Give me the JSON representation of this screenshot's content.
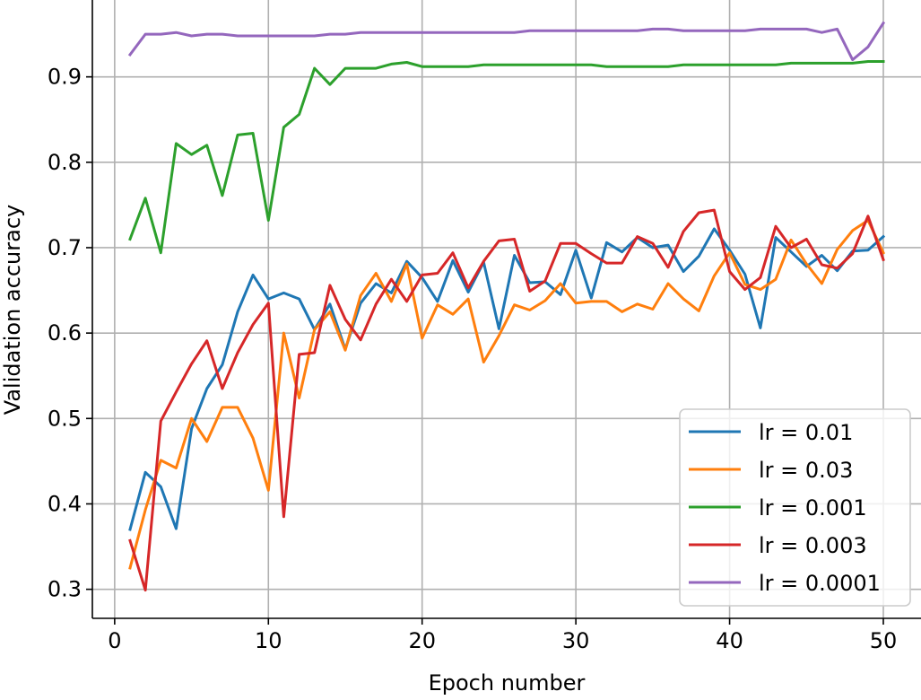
{
  "chart_data": {
    "type": "line",
    "title": "",
    "xlabel": "Epoch number",
    "ylabel": "Validation accuracy",
    "xlim": [
      -1.45,
      52.45
    ],
    "ylim": [
      0.266,
      0.99
    ],
    "xticks": [
      0,
      10,
      20,
      30,
      40,
      50
    ],
    "yticks": [
      0.3,
      0.4,
      0.5,
      0.6,
      0.7,
      0.8,
      0.9
    ],
    "ytick_labels": [
      "0.3",
      "0.4",
      "0.5",
      "0.6",
      "0.7",
      "0.8",
      "0.9"
    ],
    "grid": true,
    "legend_position": "lower right",
    "x": [
      1,
      2,
      3,
      4,
      5,
      6,
      7,
      8,
      9,
      10,
      11,
      12,
      13,
      14,
      15,
      16,
      17,
      18,
      19,
      20,
      21,
      22,
      23,
      24,
      25,
      26,
      27,
      28,
      29,
      30,
      31,
      32,
      33,
      34,
      35,
      36,
      37,
      38,
      39,
      40,
      41,
      42,
      43,
      44,
      45,
      46,
      47,
      48,
      49,
      50
    ],
    "series": [
      {
        "name": "lr = 0.01",
        "color": "#1f77b4",
        "values": [
          0.37,
          0.437,
          0.42,
          0.371,
          0.488,
          0.535,
          0.563,
          0.625,
          0.668,
          0.64,
          0.647,
          0.64,
          0.604,
          0.634,
          0.581,
          0.635,
          0.658,
          0.647,
          0.684,
          0.665,
          0.637,
          0.685,
          0.648,
          0.683,
          0.605,
          0.691,
          0.659,
          0.66,
          0.645,
          0.697,
          0.641,
          0.706,
          0.695,
          0.712,
          0.7,
          0.703,
          0.672,
          0.69,
          0.722,
          0.697,
          0.669,
          0.606,
          0.712,
          0.695,
          0.678,
          0.691,
          0.673,
          0.696,
          0.697,
          0.713
        ]
      },
      {
        "name": "lr = 0.03",
        "color": "#ff7f0e",
        "values": [
          0.325,
          0.393,
          0.451,
          0.442,
          0.5,
          0.473,
          0.513,
          0.513,
          0.477,
          0.416,
          0.6,
          0.524,
          0.604,
          0.625,
          0.58,
          0.644,
          0.67,
          0.637,
          0.681,
          0.594,
          0.633,
          0.622,
          0.64,
          0.566,
          0.597,
          0.633,
          0.627,
          0.638,
          0.658,
          0.635,
          0.637,
          0.637,
          0.625,
          0.634,
          0.628,
          0.658,
          0.64,
          0.626,
          0.667,
          0.694,
          0.657,
          0.651,
          0.663,
          0.709,
          0.681,
          0.658,
          0.698,
          0.72,
          0.732,
          0.694
        ]
      },
      {
        "name": "lr = 0.001",
        "color": "#2ca02c",
        "values": [
          0.71,
          0.758,
          0.694,
          0.822,
          0.809,
          0.82,
          0.761,
          0.832,
          0.834,
          0.732,
          0.841,
          0.856,
          0.91,
          0.891,
          0.91,
          0.91,
          0.91,
          0.915,
          0.917,
          0.912,
          0.912,
          0.912,
          0.912,
          0.914,
          0.914,
          0.914,
          0.914,
          0.914,
          0.914,
          0.914,
          0.914,
          0.912,
          0.912,
          0.912,
          0.912,
          0.912,
          0.914,
          0.914,
          0.914,
          0.914,
          0.914,
          0.914,
          0.914,
          0.916,
          0.916,
          0.916,
          0.916,
          0.916,
          0.918,
          0.918
        ]
      },
      {
        "name": "lr = 0.003",
        "color": "#d62728",
        "values": [
          0.357,
          0.299,
          0.497,
          0.531,
          0.564,
          0.591,
          0.535,
          0.577,
          0.61,
          0.635,
          0.385,
          0.575,
          0.577,
          0.656,
          0.616,
          0.592,
          0.634,
          0.663,
          0.637,
          0.668,
          0.67,
          0.694,
          0.653,
          0.684,
          0.708,
          0.71,
          0.649,
          0.661,
          0.705,
          0.705,
          0.693,
          0.682,
          0.682,
          0.713,
          0.705,
          0.677,
          0.719,
          0.741,
          0.744,
          0.672,
          0.651,
          0.665,
          0.725,
          0.7,
          0.71,
          0.68,
          0.676,
          0.693,
          0.737,
          0.686
        ]
      },
      {
        "name": "lr = 0.0001",
        "color": "#9467bd",
        "values": [
          0.926,
          0.95,
          0.95,
          0.952,
          0.948,
          0.95,
          0.95,
          0.948,
          0.948,
          0.948,
          0.948,
          0.948,
          0.948,
          0.95,
          0.95,
          0.952,
          0.952,
          0.952,
          0.952,
          0.952,
          0.952,
          0.952,
          0.952,
          0.952,
          0.952,
          0.952,
          0.954,
          0.954,
          0.954,
          0.954,
          0.954,
          0.954,
          0.954,
          0.954,
          0.956,
          0.956,
          0.954,
          0.954,
          0.954,
          0.954,
          0.954,
          0.956,
          0.956,
          0.956,
          0.956,
          0.952,
          0.956,
          0.92,
          0.935,
          0.963
        ]
      }
    ]
  }
}
